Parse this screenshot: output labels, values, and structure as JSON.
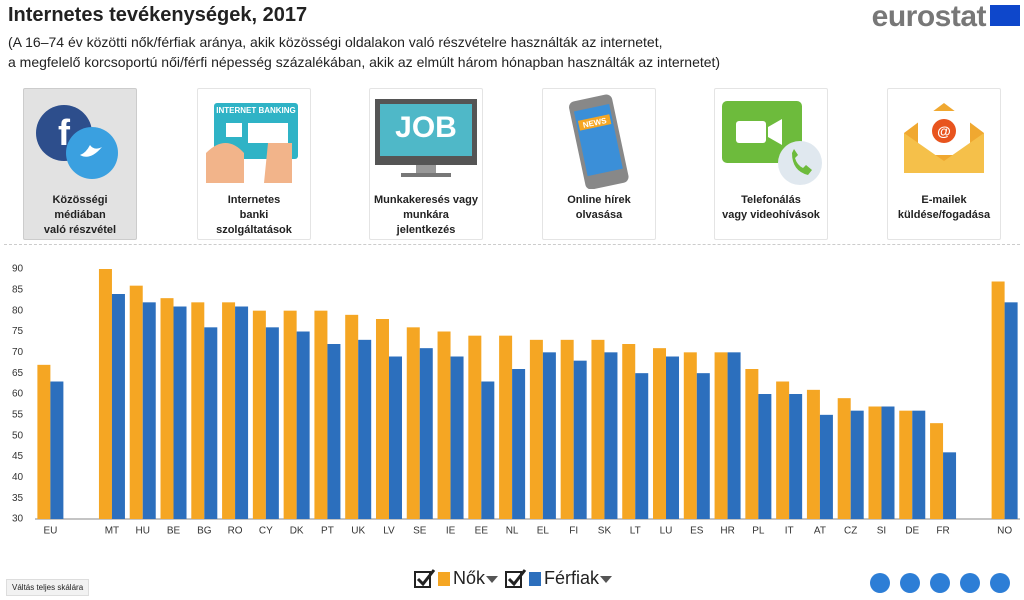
{
  "header": {
    "title": "Internetes tevékenységek, 2017",
    "subtitle": [
      "(A 16–74 év közötti nők/férfiak aránya, akik közösségi oldalakon való részvételre használták az internetet,",
      "a megfelelő korcsoportú női/férfi népesség százalékában, akik az elmúlt három hónapban használták az internetet)"
    ],
    "logo": "eurostat"
  },
  "tabs": [
    {
      "label": [
        "Közösségi",
        "médiában",
        "való részvétel"
      ],
      "selected": true
    },
    {
      "label": [
        "Internetes",
        "banki",
        "szolgáltatások"
      ],
      "icon_text": "INTERNET BANKING"
    },
    {
      "label": [
        "Munkakeresés vagy",
        "munkára",
        "jelentkezés"
      ],
      "icon_text": "JOB"
    },
    {
      "label": [
        "Online hírek",
        "olvasása"
      ],
      "icon_text": "NEWS"
    },
    {
      "label": [
        "Telefonálás",
        "vagy videohívások"
      ]
    },
    {
      "label": [
        "E-mailek",
        "küldése/fogadása"
      ]
    }
  ],
  "chart_data": {
    "type": "bar",
    "categories": [
      "EU",
      null,
      "MT",
      "HU",
      "BE",
      "BG",
      "RO",
      "CY",
      "DK",
      "PT",
      "UK",
      "LV",
      "SE",
      "IE",
      "EE",
      "NL",
      "EL",
      "FI",
      "SK",
      "LT",
      "LU",
      "ES",
      "HR",
      "PL",
      "IT",
      "AT",
      "CZ",
      "SI",
      "DE",
      "FR",
      null,
      "NO"
    ],
    "series": [
      {
        "name": "Nők",
        "color": "#f5a623",
        "values": [
          67,
          null,
          90,
          86,
          83,
          82,
          82,
          80,
          80,
          80,
          79,
          78,
          76,
          75,
          74,
          74,
          73,
          73,
          73,
          72,
          71,
          70,
          70,
          66,
          63,
          61,
          59,
          57,
          56,
          53,
          null,
          87
        ]
      },
      {
        "name": "Férfiak",
        "color": "#2c6fbd",
        "values": [
          63,
          null,
          84,
          82,
          81,
          76,
          81,
          76,
          75,
          72,
          73,
          69,
          71,
          69,
          63,
          66,
          70,
          68,
          70,
          65,
          69,
          65,
          70,
          60,
          60,
          55,
          56,
          57,
          56,
          46,
          null,
          82
        ]
      }
    ],
    "ylim": [
      30,
      90
    ],
    "yticks": [
      30,
      35,
      40,
      45,
      50,
      55,
      60,
      65,
      70,
      75,
      80,
      85,
      90
    ],
    "grid": false
  },
  "footer": {
    "scale_button": "Váltás teljes skálára"
  }
}
